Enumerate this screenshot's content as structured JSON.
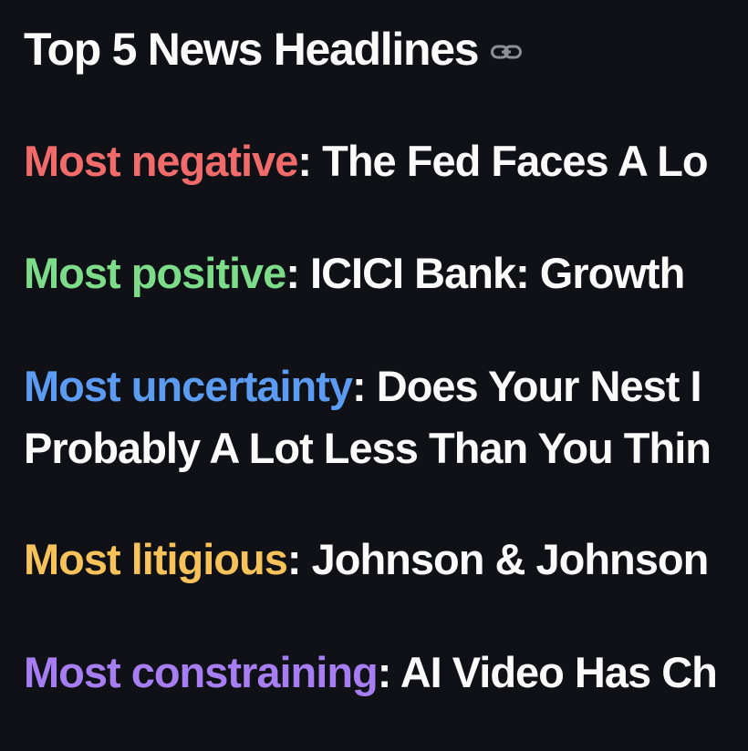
{
  "page": {
    "heading": "Top 5 News Headlines",
    "anchor_icon": "link-icon"
  },
  "colors": {
    "background": "#0f1117",
    "text": "#fafafa",
    "negative": "#f26b6b",
    "positive": "#7ddc8a",
    "uncertainty": "#5b9cf2",
    "litigious": "#f7c25a",
    "constraining": "#a77ef2",
    "anchor_icon": "#8b8f98"
  },
  "headlines": [
    {
      "label": "Most negative",
      "separator": ": ",
      "title": "The Fed Faces A Lo"
    },
    {
      "label": "Most positive",
      "separator": ": ",
      "title": "ICICI Bank: Growth"
    },
    {
      "label": "Most uncertainty",
      "separator": ": ",
      "title_line1": "Does Your Nest I",
      "title_line2": "Probably A Lot Less Than You Thin"
    },
    {
      "label": "Most litigious",
      "separator": ": ",
      "title": "Johnson & Johnson"
    },
    {
      "label": "Most constraining",
      "separator": ": ",
      "title": "AI Video Has Ch"
    }
  ]
}
